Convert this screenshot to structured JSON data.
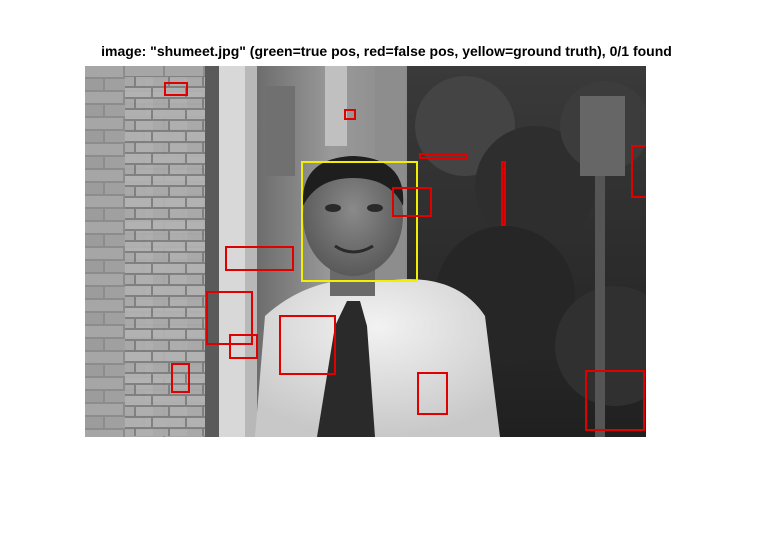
{
  "figure": {
    "title": "image: \"shumeet.jpg\" (green=true pos, red=false pos, yellow=ground truth), 0/1 found"
  },
  "colors": {
    "true_positive": "#00c000",
    "false_positive": "#e00000",
    "ground_truth": "#f0f000",
    "background": "#ffffff"
  },
  "detections": {
    "found": 0,
    "total": 1
  }
}
